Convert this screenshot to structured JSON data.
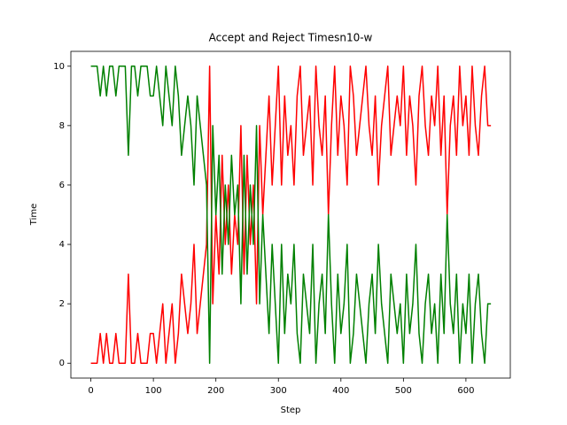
{
  "chart_data": {
    "type": "line",
    "title": "Accept and Reject Timesn10-w",
    "x_label": "Step",
    "y_label": "Time",
    "x": [
      0,
      5,
      10,
      15,
      20,
      25,
      30,
      35,
      40,
      45,
      50,
      55,
      60,
      65,
      70,
      75,
      80,
      85,
      90,
      95,
      100,
      105,
      110,
      115,
      120,
      125,
      130,
      135,
      140,
      145,
      150,
      155,
      160,
      165,
      170,
      175,
      180,
      185,
      190,
      195,
      200,
      205,
      210,
      215,
      220,
      225,
      230,
      235,
      240,
      245,
      250,
      255,
      260,
      265,
      270,
      275,
      280,
      285,
      290,
      295,
      300,
      305,
      310,
      315,
      320,
      325,
      330,
      335,
      340,
      345,
      350,
      355,
      360,
      365,
      370,
      375,
      380,
      385,
      390,
      395,
      400,
      405,
      410,
      415,
      420,
      425,
      430,
      435,
      440,
      445,
      450,
      455,
      460,
      465,
      470,
      475,
      480,
      485,
      490,
      495,
      500,
      505,
      510,
      515,
      520,
      525,
      530,
      535,
      540,
      545,
      550,
      555,
      560,
      565,
      570,
      575,
      580,
      585,
      590,
      595,
      600,
      605,
      610,
      615,
      620,
      625,
      630,
      635,
      640
    ],
    "series": [
      {
        "color": "#ff0000",
        "values": [
          0,
          0,
          0,
          1,
          0,
          1,
          0,
          0,
          1,
          0,
          0,
          0,
          3,
          0,
          0,
          1,
          0,
          0,
          0,
          1,
          1,
          0,
          1,
          2,
          0,
          1,
          2,
          0,
          1,
          3,
          2,
          1,
          2,
          4,
          1,
          2,
          3,
          4,
          10,
          2,
          5,
          3,
          7,
          4,
          6,
          3,
          5,
          4,
          8,
          3,
          7,
          4,
          6,
          2,
          8,
          5,
          7,
          9,
          6,
          8,
          10,
          6,
          9,
          7,
          8,
          6,
          9,
          10,
          7,
          8,
          9,
          6,
          10,
          8,
          7,
          9,
          5,
          8,
          10,
          7,
          9,
          8,
          6,
          10,
          9,
          7,
          8,
          9,
          10,
          8,
          7,
          9,
          6,
          8,
          9,
          10,
          7,
          8,
          9,
          8,
          10,
          7,
          9,
          8,
          6,
          9,
          10,
          8,
          7,
          9,
          8,
          10,
          7,
          9,
          5,
          8,
          9,
          7,
          10,
          8,
          9,
          7,
          10,
          8,
          7,
          9,
          10,
          8,
          8
        ]
      },
      {
        "color": "#008000",
        "values": [
          10,
          10,
          10,
          9,
          10,
          9,
          10,
          10,
          9,
          10,
          10,
          10,
          7,
          10,
          10,
          9,
          10,
          10,
          10,
          9,
          9,
          10,
          9,
          8,
          10,
          9,
          8,
          10,
          9,
          7,
          8,
          9,
          8,
          6,
          9,
          8,
          7,
          6,
          0,
          8,
          5,
          7,
          3,
          6,
          4,
          7,
          5,
          6,
          2,
          7,
          3,
          6,
          4,
          8,
          2,
          5,
          3,
          1,
          4,
          2,
          0,
          4,
          1,
          3,
          2,
          4,
          1,
          0,
          3,
          2,
          1,
          4,
          0,
          2,
          3,
          1,
          5,
          2,
          0,
          3,
          1,
          2,
          4,
          0,
          1,
          3,
          2,
          1,
          0,
          2,
          3,
          1,
          4,
          2,
          1,
          0,
          3,
          2,
          1,
          2,
          0,
          3,
          1,
          2,
          4,
          1,
          0,
          2,
          3,
          1,
          2,
          0,
          3,
          1,
          5,
          2,
          1,
          3,
          0,
          2,
          1,
          3,
          0,
          2,
          3,
          1,
          0,
          2,
          2
        ]
      }
    ],
    "xlim": [
      -32,
      671
    ],
    "ylim": [
      -0.5,
      10.5
    ],
    "xticks": [
      0,
      100,
      200,
      300,
      400,
      500,
      600
    ],
    "yticks": [
      0,
      2,
      4,
      6,
      8,
      10
    ]
  }
}
